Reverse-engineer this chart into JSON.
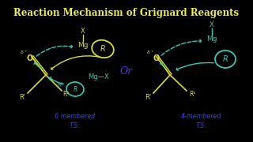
{
  "title": "Reaction Mechanism of Grignard Reagents",
  "title_color": "#EEEE44",
  "title_fontsize": 8.5,
  "background_color": "#000000",
  "or_text": "Or",
  "or_color": "#5533EE",
  "yellow": "#DDDD33",
  "cyan": "#33CCBB",
  "blue": "#3344EE",
  "left_label1": "6 membered",
  "left_label2": "T.S.",
  "right_label1": "4-membered",
  "right_label2": "T.S.",
  "label_fontsize": 5.8
}
